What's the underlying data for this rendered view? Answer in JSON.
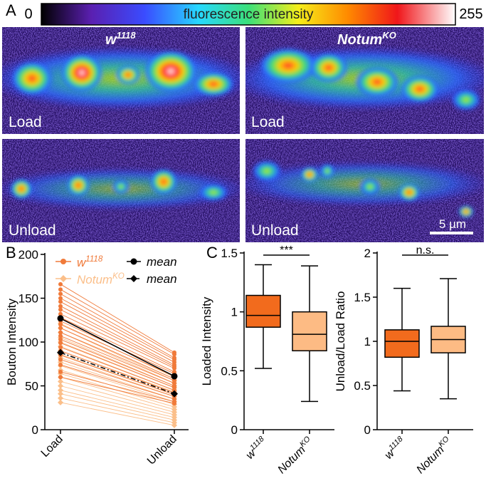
{
  "panel_a": {
    "panel": "A",
    "colorbar": {
      "min": 0,
      "max": 255,
      "label": "fluorescence intensity"
    },
    "genotypes": [
      {
        "base": "w",
        "sup": "1118"
      },
      {
        "base": "Notum",
        "sup": "KO"
      }
    ],
    "conditions": [
      "Load",
      "Load",
      "Unload",
      "Unload"
    ],
    "scale_bar": "5 µm"
  },
  "chart_data": [
    {
      "type": "line",
      "panel": "B",
      "ylabel": "Bouton Intensity",
      "categories": [
        "Load",
        "Unload"
      ],
      "ylim": [
        0,
        200
      ],
      "yticks": [
        0,
        50,
        100,
        150,
        200
      ],
      "groups": [
        {
          "name": {
            "base": "w",
            "sup": "1118"
          },
          "color": "#f07a3a",
          "lines": [
            [
              166,
              88
            ],
            [
              160,
              86
            ],
            [
              155,
              82
            ],
            [
              150,
              80
            ],
            [
              146,
              77
            ],
            [
              141,
              74
            ],
            [
              137,
              72
            ],
            [
              132,
              70
            ],
            [
              128,
              66
            ],
            [
              124,
              64
            ],
            [
              120,
              61
            ],
            [
              116,
              58
            ],
            [
              111,
              56
            ],
            [
              107,
              53
            ],
            [
              103,
              50
            ],
            [
              99,
              48
            ],
            [
              94,
              45
            ],
            [
              90,
              42
            ],
            [
              85,
              40
            ],
            [
              80,
              38
            ],
            [
              74,
              35
            ],
            [
              66,
              32
            ],
            [
              60,
              30
            ]
          ],
          "mean": {
            "name": "mean",
            "values": [
              127,
              61
            ]
          }
        },
        {
          "name": {
            "base": "Notum",
            "sup": "KO"
          },
          "color": "#fbbf8a",
          "lines": [
            [
              121,
              60
            ],
            [
              116,
              56
            ],
            [
              111,
              53
            ],
            [
              105,
              50
            ],
            [
              100,
              48
            ],
            [
              95,
              45
            ],
            [
              90,
              43
            ],
            [
              86,
              40
            ],
            [
              82,
              38
            ],
            [
              77,
              35
            ],
            [
              73,
              32
            ],
            [
              68,
              29
            ],
            [
              64,
              26
            ],
            [
              60,
              23
            ],
            [
              55,
              20
            ],
            [
              50,
              17
            ],
            [
              45,
              14
            ],
            [
              41,
              11
            ],
            [
              36,
              8
            ],
            [
              31,
              5
            ]
          ],
          "mean": {
            "name": "mean",
            "values": [
              88,
              41
            ]
          }
        }
      ]
    },
    {
      "type": "box",
      "panel": "C",
      "ylabel": "Loaded Intensity",
      "ylim": [
        0,
        1.5
      ],
      "yticks": [
        0,
        0.5,
        1,
        1.5
      ],
      "annotation": "***",
      "boxes": [
        {
          "name": {
            "base": "w",
            "sup": "1118"
          },
          "color": "#f26b1d",
          "whisker_low": 0.52,
          "q1": 0.87,
          "median": 0.97,
          "q3": 1.14,
          "whisker_high": 1.4
        },
        {
          "name": {
            "base": "Notum",
            "sup": "KO"
          },
          "color": "#fdbb84",
          "whisker_low": 0.24,
          "q1": 0.67,
          "median": 0.81,
          "q3": 1.0,
          "whisker_high": 1.39
        }
      ]
    },
    {
      "type": "box",
      "ylabel": "Unload/Load Ratio",
      "ylim": [
        0,
        2
      ],
      "yticks": [
        0,
        0.5,
        1,
        1.5,
        2
      ],
      "annotation": "n.s.",
      "boxes": [
        {
          "name": {
            "base": "w",
            "sup": "1118"
          },
          "color": "#f26b1d",
          "whisker_low": 0.44,
          "q1": 0.82,
          "median": 1.0,
          "q3": 1.13,
          "whisker_high": 1.6
        },
        {
          "name": {
            "base": "Notum",
            "sup": "KO"
          },
          "color": "#fdbb84",
          "whisker_low": 0.35,
          "q1": 0.87,
          "median": 1.02,
          "q3": 1.17,
          "whisker_high": 1.71
        }
      ]
    }
  ]
}
